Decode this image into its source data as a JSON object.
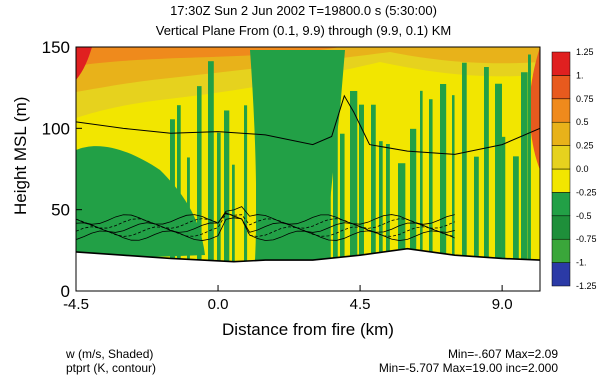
{
  "header": {
    "line1": "17:30Z Sun  2 Jun 2002    T=19800.0 s (5:30:00)",
    "line2": "Vertical Plane From (0.1, 9.9) through (9.9, 0.1) KM"
  },
  "footer": {
    "left_1": "w (m/s, Shaded)",
    "left_2": "ptprt (K, contour)",
    "right_1": "Min=-.607 Max=2.09",
    "right_2": "Min=-5.707 Max=19.00 inc=2.000"
  },
  "colors": {
    "c_neg125": "#3aa6dc",
    "c_neg100": "#2b3aa6",
    "c_neg075": "#3aa63a",
    "c_neg050": "#1e8f3a",
    "c_neg025": "#22a046",
    "c_000": "#f2e600",
    "c_025": "#e6d21e",
    "c_050": "#e8b21a",
    "c_075": "#ef8a1c",
    "c_100": "#e85a1e",
    "c_125": "#e02020"
  },
  "chart_data": {
    "type": "heatmap",
    "xlabel": "Distance from fire (km)",
    "ylabel": "Height MSL (m)",
    "xlim": [
      -4.5,
      10.2
    ],
    "ylim": [
      0,
      150
    ],
    "x_ticks": [
      -4.5,
      0.0,
      4.5,
      9.0
    ],
    "x_tick_labels": [
      "-4.5",
      "0.0",
      "4.5",
      "9.0"
    ],
    "y_ticks": [
      0,
      50,
      100,
      150
    ],
    "y_tick_labels": [
      "0",
      "50",
      "100",
      "150"
    ],
    "colorbar": {
      "levels": [
        -1.25,
        -1.0,
        -0.75,
        -0.5,
        -0.25,
        0.0,
        0.25,
        0.5,
        0.75,
        1.0,
        1.25
      ],
      "labels": [
        "-1.25",
        "-1.",
        "-0.75",
        "-0.5",
        "-0.25",
        "0.0",
        "0.25",
        "0.5",
        "0.75",
        "1.",
        "1.25"
      ]
    },
    "terrain_top_m": {
      "x": [
        -4.5,
        -3.0,
        -1.5,
        -0.5,
        0.5,
        1.5,
        3.0,
        4.5,
        6.0,
        7.5,
        9.0,
        10.2
      ],
      "y": [
        24,
        22,
        20,
        19,
        18,
        19,
        19,
        22,
        26,
        22,
        20,
        19
      ]
    },
    "upper_contour_m": {
      "x": [
        -4.5,
        -3.0,
        -1.5,
        0.0,
        1.5,
        3.0,
        3.6,
        4.0,
        4.3,
        4.8,
        6.0,
        7.5,
        9.0,
        10.2
      ],
      "y": [
        104,
        100,
        97,
        98,
        96,
        90,
        95,
        120,
        110,
        90,
        86,
        84,
        90,
        100
      ]
    }
  }
}
